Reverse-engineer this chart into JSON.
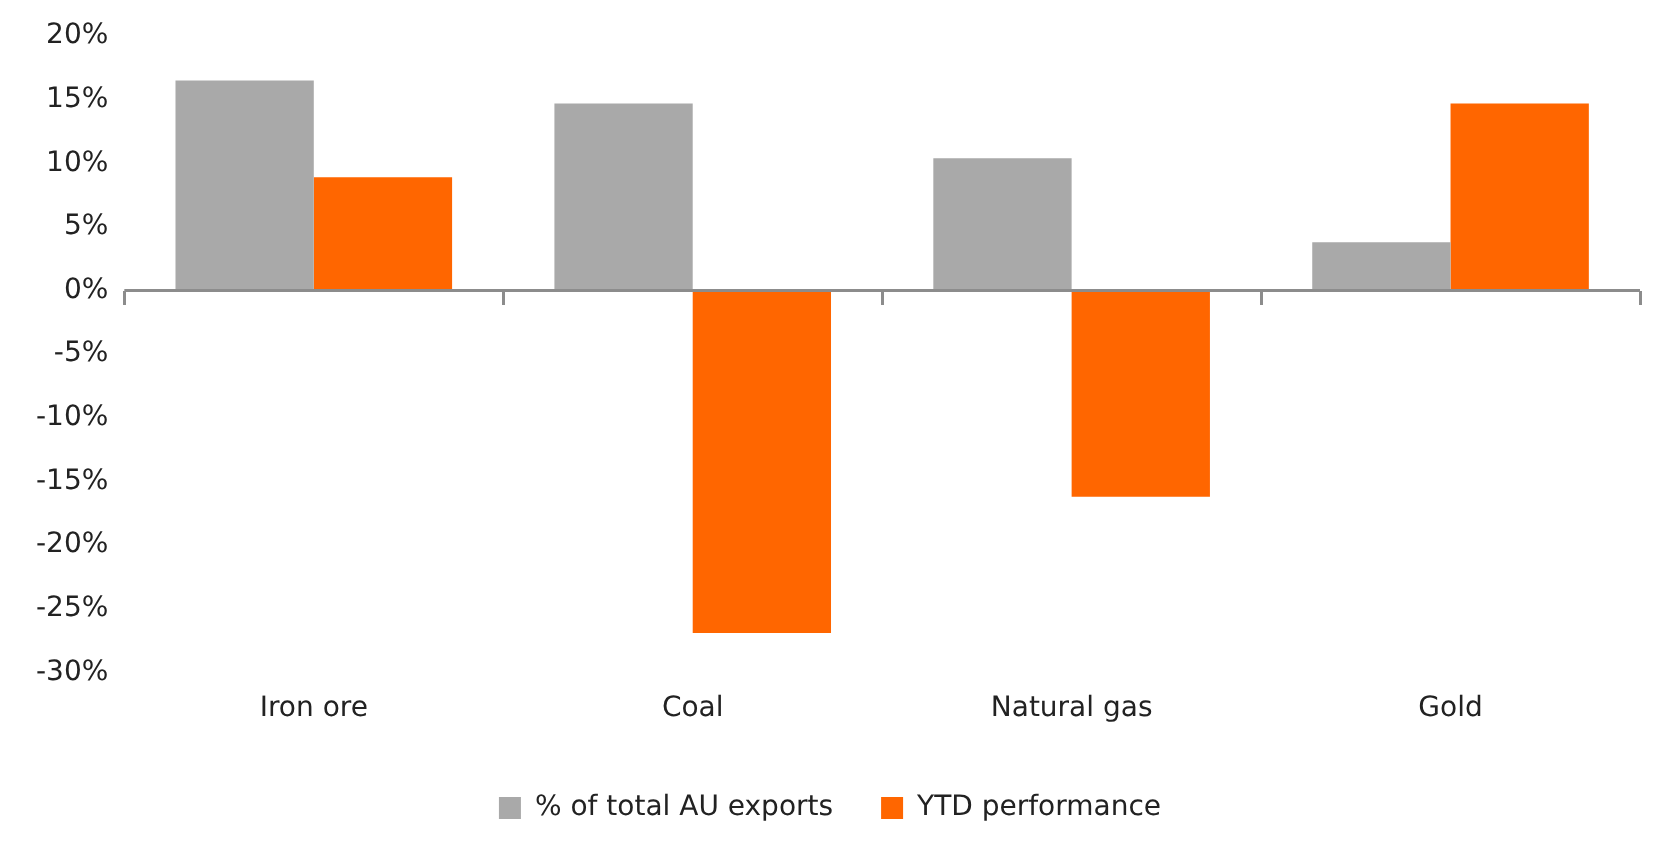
{
  "chart_data": {
    "type": "bar",
    "categories": [
      "Iron ore",
      "Coal",
      "Natural gas",
      "Gold"
    ],
    "series": [
      {
        "name": "% of total AU exports",
        "color": "#a9a9a9",
        "values": [
          16.5,
          14.7,
          10.4,
          3.8
        ]
      },
      {
        "name": "YTD performance",
        "color": "#ff6600",
        "values": [
          8.9,
          -26.9,
          -16.2,
          14.7
        ]
      }
    ],
    "ylim": [
      -30,
      20
    ],
    "yticks": [
      {
        "value": 20,
        "label": "20%"
      },
      {
        "value": 15,
        "label": "15%"
      },
      {
        "value": 10,
        "label": "10%"
      },
      {
        "value": 5,
        "label": "5%"
      },
      {
        "value": 0,
        "label": "0%"
      },
      {
        "value": -5,
        "label": "-5%"
      },
      {
        "value": -10,
        "label": "-10%"
      },
      {
        "value": -15,
        "label": "-15%"
      },
      {
        "value": -20,
        "label": "-20%"
      },
      {
        "value": -25,
        "label": "-25%"
      },
      {
        "value": -30,
        "label": "-30%"
      }
    ],
    "ref_lines": [
      {
        "axis": "y",
        "value": 0,
        "color": "#8c8c8c"
      }
    ],
    "legend": "bottom"
  }
}
